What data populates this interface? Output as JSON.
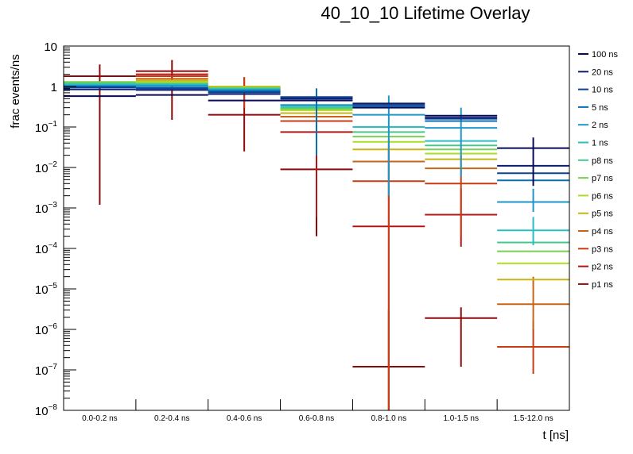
{
  "chart_data": {
    "type": "line",
    "subtype": "step-histogram-with-error-bars",
    "title": "40_10_10 Lifetime Overlay",
    "xlabel": "t [ns]",
    "ylabel": "frac events/ns",
    "yscale": "log",
    "ylim": [
      1e-08,
      10
    ],
    "ytick_labels": [
      {
        "value": 10,
        "label": "10"
      },
      {
        "value": 1,
        "label": "1"
      },
      {
        "value": 0.1,
        "base": "10",
        "exp": "−1"
      },
      {
        "value": 0.01,
        "base": "10",
        "exp": "−2"
      },
      {
        "value": 0.001,
        "base": "10",
        "exp": "−3"
      },
      {
        "value": 0.0001,
        "base": "10",
        "exp": "−4"
      },
      {
        "value": 1e-05,
        "base": "10",
        "exp": "−5"
      },
      {
        "value": 1e-06,
        "base": "10",
        "exp": "−6"
      },
      {
        "value": 1e-07,
        "base": "10",
        "exp": "−7"
      },
      {
        "value": 1e-08,
        "base": "10",
        "exp": "−8"
      }
    ],
    "categories": [
      "0.0-0.2 ns",
      "0.2-0.4 ns",
      "0.4-0.6 ns",
      "0.6-0.8 ns",
      "0.8-1.0 ns",
      "1.0-1.5 ns",
      "1.5-12.0 ns"
    ],
    "legend_position": "right",
    "grid": false,
    "series": [
      {
        "name": "100 ns",
        "color": "#0a0a5a",
        "values": [
          0.58,
          0.62,
          0.45,
          0.45,
          0.3,
          0.19,
          0.03
        ],
        "errors": [
          null,
          null,
          null,
          null,
          null,
          null,
          [
            0.0035,
            0.055
          ]
        ]
      },
      {
        "name": "20 ns",
        "color": "#0b1c6e",
        "values": [
          0.85,
          0.82,
          0.65,
          0.5,
          0.38,
          0.17,
          0.011
        ],
        "errors": []
      },
      {
        "name": "10 ns",
        "color": "#0a4496",
        "values": [
          0.95,
          0.9,
          0.72,
          0.55,
          0.35,
          0.16,
          0.0072
        ],
        "errors": []
      },
      {
        "name": "5 ns",
        "color": "#0a6eb4",
        "values": [
          1.0,
          0.95,
          0.78,
          0.52,
          0.32,
          0.14,
          0.0048
        ],
        "errors": [
          null,
          null,
          null,
          [
            0.02,
            0.9
          ],
          null,
          null,
          null
        ]
      },
      {
        "name": "2 ns",
        "color": "#1e96c8",
        "values": [
          1.05,
          1.05,
          0.82,
          0.35,
          0.2,
          0.095,
          0.0014
        ],
        "errors": [
          null,
          null,
          null,
          null,
          [
            0.002,
            0.6
          ],
          [
            0.006,
            0.3
          ],
          [
            0.0008,
            0.003
          ]
        ]
      },
      {
        "name": "1 ns",
        "color": "#28bec8",
        "values": [
          1.1,
          1.1,
          0.86,
          0.33,
          0.1,
          0.045,
          0.00028
        ],
        "errors": [
          null,
          null,
          null,
          null,
          null,
          null,
          [
            0.00012,
            0.0006
          ]
        ]
      },
      {
        "name": "p8 ns",
        "color": "#46c88c",
        "values": [
          1.2,
          1.15,
          0.9,
          0.3,
          0.075,
          0.035,
          0.00014
        ],
        "errors": []
      },
      {
        "name": "p7 ns",
        "color": "#78d250",
        "values": [
          1.3,
          1.2,
          0.92,
          0.28,
          0.058,
          0.028,
          8.5e-05
        ],
        "errors": []
      },
      {
        "name": "p6 ns",
        "color": "#aadc28",
        "values": [
          1.25,
          1.3,
          0.95,
          0.26,
          0.043,
          0.022,
          4.3e-05
        ],
        "errors": []
      },
      {
        "name": "p5 ns",
        "color": "#c8b414",
        "values": [
          1.2,
          1.4,
          1.0,
          0.22,
          0.028,
          0.016,
          1.7e-05
        ],
        "errors": []
      },
      {
        "name": "p4 ns",
        "color": "#c86414",
        "values": [
          1.15,
          1.55,
          0.95,
          0.18,
          0.014,
          0.0095,
          4.2e-06
        ],
        "errors": [
          null,
          null,
          null,
          null,
          null,
          null,
          [
            1e-06,
            2e-05
          ]
        ]
      },
      {
        "name": "p3 ns",
        "color": "#c83c14",
        "values": [
          1.1,
          1.8,
          0.85,
          0.14,
          0.0046,
          0.004,
          3.7e-07
        ],
        "errors": [
          null,
          null,
          [
            0.3,
            1.7
          ],
          null,
          [
            1e-08,
            0.05
          ],
          [
            0.0002,
            0.02
          ],
          [
            8e-08,
            1.6e-06
          ]
        ]
      },
      {
        "name": "p2 ns",
        "color": "#b41414",
        "values": [
          1.0,
          2.0,
          0.75,
          0.075,
          0.00035,
          0.00068,
          null
        ],
        "errors": [
          null,
          null,
          null,
          [
            0.0006,
            0.4
          ],
          [
            1e-08,
            0.03
          ],
          [
            0.00011,
            0.003
          ],
          null
        ]
      },
      {
        "name": "p1 ns",
        "color": "#8c0a0a",
        "values": [
          1.8,
          2.4,
          0.2,
          0.009,
          1.2e-07,
          1.9e-06,
          null
        ],
        "errors": [
          [
            0.0012,
            3.5
          ],
          [
            0.15,
            4.5
          ],
          [
            0.025,
            1.7
          ],
          [
            0.0002,
            0.3
          ],
          [
            1e-08,
            3e-06
          ],
          [
            1.2e-07,
            3.5e-06
          ],
          null
        ]
      }
    ]
  }
}
